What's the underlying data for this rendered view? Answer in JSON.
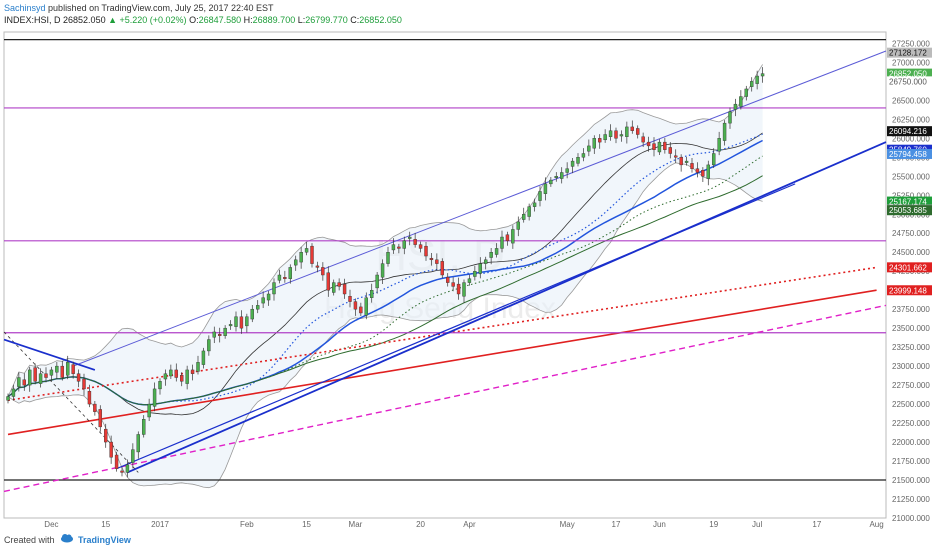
{
  "header": {
    "author": "Sachinsyd",
    "published": "published on TradingView.com, July 25, 2017 22:40 EST",
    "symbol": "INDEX:HSI, D",
    "last": "26852.050",
    "change": "▲ +5.220 (+0.02%)",
    "o_label": "O:",
    "o": "26847.580",
    "h_label": "H:",
    "h": "26889.700",
    "l_label": "L:",
    "l": "26799.770",
    "c_label": "C:",
    "c": "26852.050"
  },
  "footer": {
    "created_with": "Created with",
    "brand": "TradingView"
  },
  "colors": {
    "up": "#4caf50",
    "down": "#e53935",
    "wick": "#333333",
    "channel": "#5b5bd6",
    "trend": "#1a2fcc",
    "purple": "#b040c8",
    "black": "#222222",
    "red": "#e02020",
    "magenta": "#e020c8",
    "green": "#2e6b2e",
    "bb": "#999999",
    "blueMA": "#2255dd"
  },
  "chart_data": {
    "type": "candlestick",
    "symbol": "INDEX:HSI, D",
    "watermark": [
      "HSI, D",
      "Hang Seng Index"
    ],
    "ylim": [
      21000,
      27400
    ],
    "y_ticks": [
      21000,
      21250,
      21500,
      21750,
      22000,
      22250,
      22500,
      22750,
      23000,
      23250,
      23500,
      23750,
      24000,
      24250,
      24500,
      24750,
      25000,
      25250,
      25500,
      25750,
      26000,
      26250,
      26500,
      26750,
      27000,
      27250
    ],
    "x_ticks": [
      {
        "label": "Dec",
        "i": 8
      },
      {
        "label": "15",
        "i": 18
      },
      {
        "label": "2017",
        "i": 28
      },
      {
        "label": "Feb",
        "i": 44
      },
      {
        "label": "15",
        "i": 55
      },
      {
        "label": "Mar",
        "i": 64
      },
      {
        "label": "20",
        "i": 76
      },
      {
        "label": "Apr",
        "i": 85
      },
      {
        "label": "May",
        "i": 103
      },
      {
        "label": "17",
        "i": 112
      },
      {
        "label": "Jun",
        "i": 120
      },
      {
        "label": "19",
        "i": 130
      },
      {
        "label": "Jul",
        "i": 138
      },
      {
        "label": "17",
        "i": 149
      },
      {
        "label": "Aug",
        "i": 160
      }
    ],
    "n_slots": 162,
    "candles_close": [
      22600,
      22700,
      22850,
      22750,
      22950,
      22800,
      22900,
      22850,
      22950,
      23000,
      22850,
      23050,
      22900,
      22800,
      22700,
      22500,
      22400,
      22200,
      22000,
      21800,
      21650,
      21600,
      21700,
      21900,
      22100,
      22300,
      22500,
      22700,
      22800,
      22900,
      22950,
      22850,
      22800,
      22950,
      22900,
      23050,
      23200,
      23350,
      23450,
      23400,
      23500,
      23550,
      23650,
      23500,
      23650,
      23750,
      23800,
      23900,
      23950,
      24100,
      24200,
      24150,
      24300,
      24400,
      24500,
      24550,
      24350,
      24300,
      24200,
      24000,
      24100,
      24050,
      23950,
      23850,
      23750,
      23700,
      23900,
      24000,
      24200,
      24350,
      24500,
      24600,
      24550,
      24650,
      24700,
      24600,
      24550,
      24450,
      24400,
      24350,
      24200,
      24100,
      24050,
      23950,
      24100,
      24150,
      24250,
      24350,
      24400,
      24500,
      24550,
      24700,
      24650,
      24800,
      24900,
      25000,
      25100,
      25150,
      25300,
      25400,
      25450,
      25500,
      25550,
      25600,
      25700,
      25750,
      25800,
      25900,
      26000,
      25950,
      26050,
      26100,
      26000,
      26050,
      26150,
      26100,
      26050,
      25950,
      25900,
      25850,
      25950,
      25850,
      25800,
      25750,
      25650,
      25700,
      25600,
      25550,
      25500,
      25650,
      25800,
      26000,
      26200,
      26350,
      26450,
      26550,
      26650,
      26750,
      26820,
      26852
    ],
    "ma_values": {
      "red_ema200": {
        "start": [
          0,
          22100
        ],
        "end": [
          160,
          24000
        ]
      },
      "red_dotted": {
        "start": [
          0,
          22550
        ],
        "end": [
          160,
          24300
        ]
      },
      "green_ma": {
        "start": [
          0,
          23100
        ],
        "end": [
          160,
          25060
        ]
      }
    },
    "value_labels": [
      {
        "value": "27128.172",
        "y": 27128,
        "bg": "#bbbbbb",
        "fg": "#111"
      },
      {
        "value": "26852.050",
        "y": 26852,
        "bg": "#4caf50",
        "fg": "#fff"
      },
      {
        "value": "26750.000",
        "y": 26750,
        "bg": "#ffffff",
        "fg": "#555"
      },
      {
        "value": "26094.216",
        "y": 26094,
        "bg": "#111111",
        "fg": "#fff"
      },
      {
        "value": "25849.760",
        "y": 25850,
        "bg": "#1a2fcc",
        "fg": "#fff"
      },
      {
        "value": "25794.458",
        "y": 25794,
        "bg": "#4a90e2",
        "fg": "#fff"
      },
      {
        "value": "25167.174",
        "y": 25167,
        "bg": "#1e9e3a",
        "fg": "#fff"
      },
      {
        "value": "25062.260",
        "y": 25062,
        "bg": "#999999",
        "fg": "#fff"
      },
      {
        "value": "25053.685",
        "y": 25053,
        "bg": "#2e6b2e",
        "fg": "#fff"
      },
      {
        "value": "24301.662",
        "y": 24301,
        "bg": "#e02020",
        "fg": "#fff"
      },
      {
        "value": "23999.148",
        "y": 23999,
        "bg": "#e02020",
        "fg": "#fff"
      }
    ],
    "horizontal_lines": [
      {
        "y": 27300,
        "color": "black"
      },
      {
        "y": 26400,
        "color": "purple"
      },
      {
        "y": 24650,
        "color": "purple"
      },
      {
        "y": 23440,
        "color": "purple"
      },
      {
        "y": 21500,
        "color": "black"
      }
    ]
  }
}
